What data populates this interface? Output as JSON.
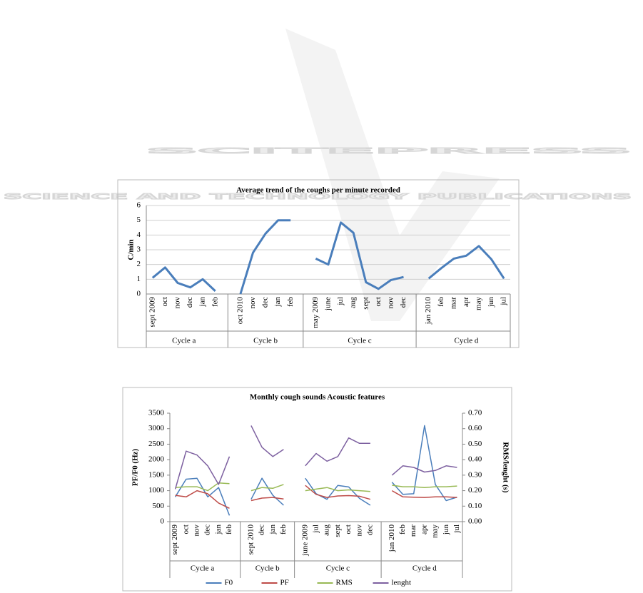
{
  "watermark": {
    "title": "SCITEPRESS",
    "subtitle": "SCIENCE AND TECHNOLOGY PUBLICATIONS"
  },
  "chart_data": [
    {
      "type": "line",
      "title": "Average trend of the coughs per minute recorded",
      "y_label": "C/min",
      "categories": [
        "sept 2009",
        "oct",
        "nov",
        "dec",
        "jan",
        "feb",
        null,
        "oct 2010",
        "nov",
        "dec",
        "jan",
        "feb",
        null,
        "may 2009",
        "june",
        "jul",
        "aug",
        "sept",
        "oct",
        "nov",
        "dec",
        null,
        "jan 2010",
        "feb",
        "mar",
        "apr",
        "may",
        "jun",
        "jul"
      ],
      "groups": [
        "Cycle a",
        "Cycle b",
        "Cycle c",
        "Cycle d"
      ],
      "values": [
        1.1,
        1.8,
        0.75,
        0.45,
        1.0,
        0.2,
        null,
        0.0,
        2.8,
        4.1,
        5.0,
        5.0,
        null,
        2.4,
        2.0,
        4.85,
        4.15,
        0.8,
        0.35,
        0.95,
        1.15,
        null,
        1.05,
        1.75,
        2.4,
        2.6,
        3.25,
        2.35,
        1.05
      ],
      "color": "#4a7ebb",
      "ylim": [
        0,
        6
      ],
      "yticks": [
        0,
        1,
        2,
        3,
        4,
        5,
        6
      ],
      "grid": true
    },
    {
      "type": "line",
      "title": "Monthly cough sounds Acoustic features",
      "y_label": "PF/F0 (Hz)",
      "y2_label": "RMS/lenght (s)",
      "categories": [
        "sept 2009",
        "oct",
        "nov",
        "dec",
        "jan",
        "feb",
        null,
        "sept 2010",
        "dec",
        "jan",
        "feb",
        null,
        "june 2009",
        "jul",
        "aug",
        "sept",
        "oct",
        "nov",
        "dec",
        null,
        "jan 2010",
        "feb",
        "mar",
        "apr",
        "may",
        "jun",
        "jul"
      ],
      "groups": [
        "Cycle a",
        "Cycle b",
        "Cycle c",
        "Cycle d"
      ],
      "series": [
        {
          "name": "F0",
          "color": "#4a7ebb",
          "values": [
            800,
            1370,
            1400,
            800,
            1100,
            200,
            null,
            720,
            1400,
            850,
            530,
            null,
            1400,
            900,
            720,
            1170,
            1120,
            750,
            530,
            null,
            1270,
            880,
            900,
            3100,
            1200,
            680,
            790
          ]
        },
        {
          "name": "PF",
          "color": "#be4b48",
          "values": [
            850,
            800,
            1000,
            900,
            600,
            430,
            null,
            680,
            760,
            780,
            730,
            null,
            1170,
            880,
            780,
            830,
            840,
            820,
            720,
            null,
            1000,
            800,
            790,
            780,
            800,
            800,
            780
          ]
        },
        {
          "name": "RMS",
          "color": "#98b954",
          "axis": "y2",
          "values": [
            0.22,
            0.225,
            0.225,
            0.2,
            0.25,
            0.245,
            null,
            0.2,
            0.22,
            0.215,
            0.24,
            null,
            0.2,
            0.21,
            0.22,
            0.2,
            0.205,
            0.2,
            0.195,
            null,
            0.235,
            0.225,
            0.225,
            0.22,
            0.225,
            0.225,
            0.23
          ]
        },
        {
          "name": "lenght",
          "color": "#7d60a0",
          "axis": "y2",
          "values": [
            0.21,
            0.455,
            0.43,
            0.36,
            0.24,
            0.42,
            null,
            0.62,
            0.48,
            0.42,
            0.466,
            null,
            0.36,
            0.44,
            0.39,
            0.42,
            0.54,
            0.505,
            0.505,
            null,
            0.3,
            0.36,
            0.35,
            0.32,
            0.33,
            0.36,
            0.35
          ]
        }
      ],
      "ylim": [
        0,
        3500
      ],
      "yticks": [
        0,
        500,
        1000,
        1500,
        2000,
        2500,
        3000,
        3500
      ],
      "y2lim": [
        0,
        0.7
      ],
      "y2ticks": [
        {
          "value": 0,
          "label": "0.00"
        },
        {
          "value": 0.1,
          "label": "0.10"
        },
        {
          "value": 0.2,
          "label": "0.20"
        },
        {
          "value": 0.3,
          "label": "0.30"
        },
        {
          "value": 0.4,
          "label": "0.40"
        },
        {
          "value": 0.5,
          "label": "0.50"
        },
        {
          "value": 0.6,
          "label": "0.60"
        },
        {
          "value": 0.7,
          "label": "0.70"
        }
      ],
      "grid": false,
      "legend": "bottom"
    }
  ]
}
